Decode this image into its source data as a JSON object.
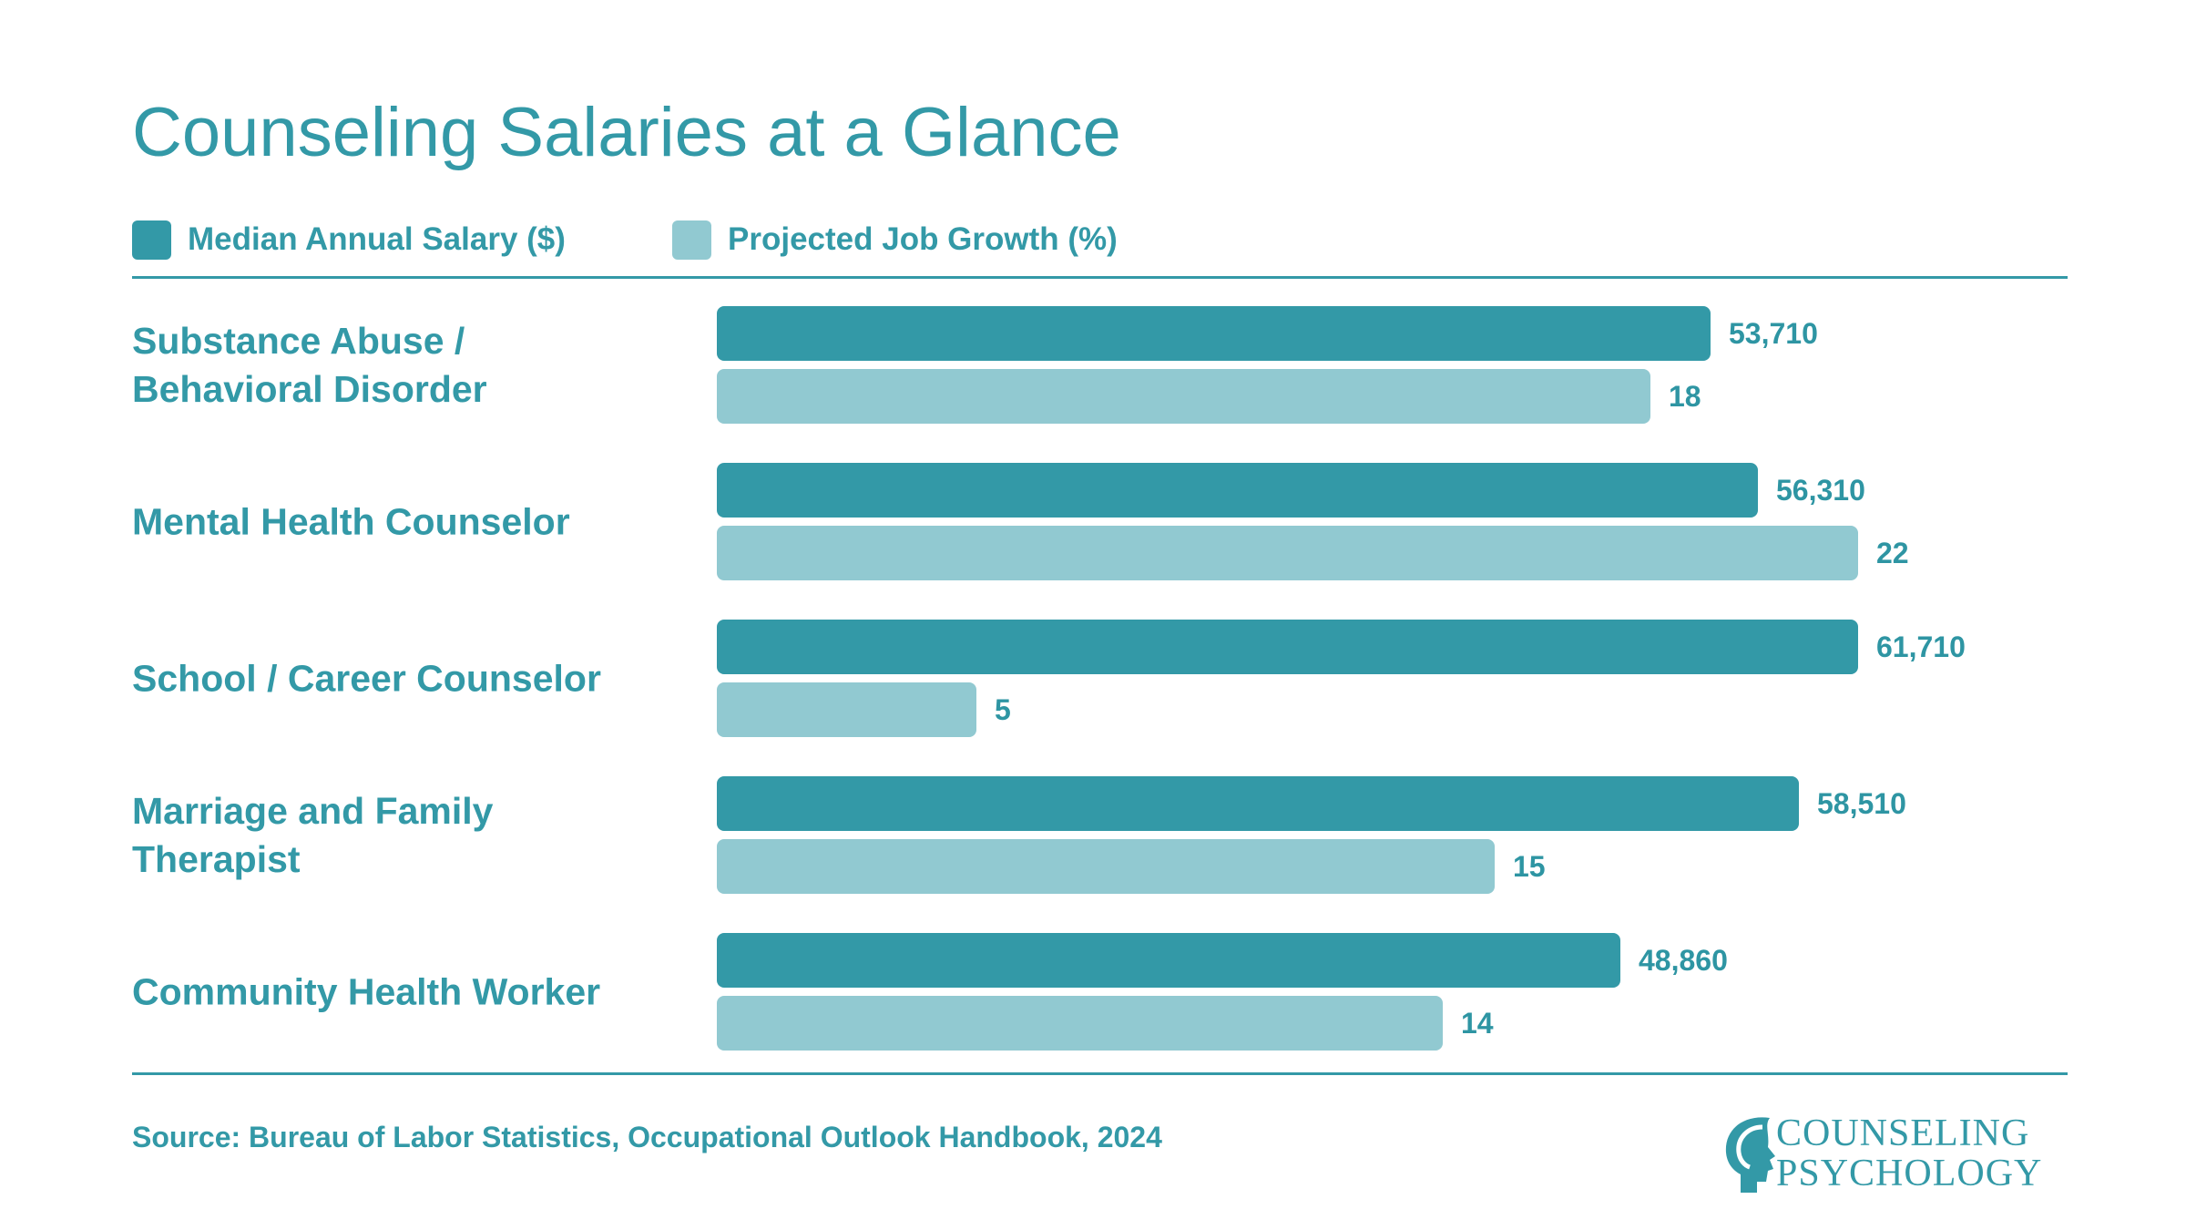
{
  "title": "Counseling Salaries at a Glance",
  "legend": [
    {
      "label": "Median Annual Salary ($)",
      "color": "#3399a7"
    },
    {
      "label": "Projected Job Growth (%)",
      "color": "#91c9d1"
    }
  ],
  "source": "Source: Bureau of Labor Statistics, Occupational Outlook Handbook, 2024",
  "logo": {
    "line1": "COUNSELING",
    "line2": "PSYCHOLOGY"
  },
  "colors": {
    "primary": "#3399a7",
    "secondary": "#91c9d1"
  },
  "chart_data": {
    "type": "bar",
    "orientation": "horizontal",
    "title": "Counseling Salaries at a Glance",
    "categories": [
      "Substance Abuse / Behavioral Disorder",
      "Mental Health Counselor",
      "School / Career Counselor",
      "Marriage and Family Therapist",
      "Community Health Worker"
    ],
    "series": [
      {
        "name": "Median Annual Salary ($)",
        "values": [
          53710,
          56310,
          61710,
          58510,
          48860
        ],
        "labels": [
          "53,710",
          "56,310",
          "61,710",
          "58,510",
          "48,860"
        ]
      },
      {
        "name": "Projected Job Growth (%)",
        "values": [
          18,
          22,
          5,
          15,
          14
        ],
        "labels": [
          "18",
          "22",
          "5",
          "15",
          "14"
        ]
      }
    ],
    "legend_position": "top-left",
    "grid": false
  }
}
